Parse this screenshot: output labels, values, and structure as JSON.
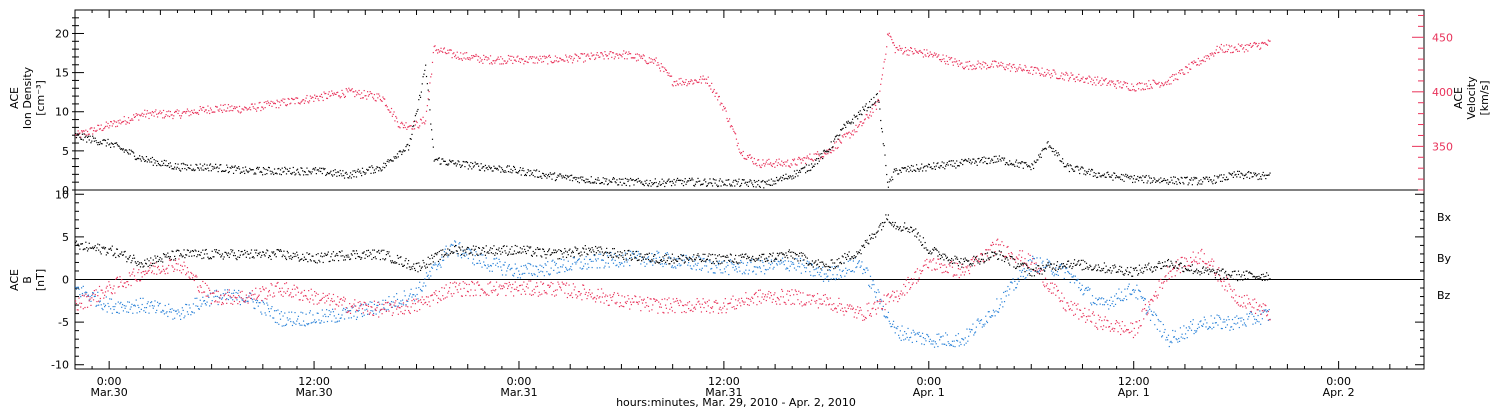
{
  "chart_data": [
    {
      "type": "scatter",
      "ylabel": [
        "ACE",
        "Ion Density",
        "[cm⁻³]"
      ],
      "ylabel_right": [
        "ACE",
        "Velocity",
        "[km/s]"
      ],
      "ylim": [
        0,
        23
      ],
      "ylim_right": [
        310,
        475
      ],
      "yticks": [
        0,
        5,
        10,
        15,
        20
      ],
      "yticks_right": [
        350,
        400,
        450
      ],
      "colors": {
        "density": "#000000",
        "velocity": "#e8325a"
      },
      "series": [
        {
          "name": "",
          "key": "density",
          "x": [
            -2,
            0,
            2,
            4,
            6,
            8,
            10,
            12,
            14,
            16,
            17,
            17.5,
            18,
            18.5,
            19,
            20,
            22,
            24,
            26,
            28,
            30,
            32,
            34,
            36,
            38,
            38.5,
            39,
            40,
            41,
            42,
            43,
            44,
            45,
            45.6,
            46,
            48,
            50,
            52,
            54,
            55,
            56,
            58,
            60,
            62,
            64,
            65,
            66,
            68
          ],
          "y": [
            7,
            6,
            4,
            3,
            3,
            2.5,
            2.5,
            2.5,
            2,
            3,
            5,
            5.5,
            10,
            16,
            4,
            3.5,
            3,
            2.5,
            1.8,
            1.4,
            1.1,
            1,
            1.1,
            1,
            0.9,
            0.8,
            1.2,
            2,
            3,
            5,
            8,
            10,
            12,
            0.5,
            2.5,
            3,
            3.5,
            4,
            3,
            6,
            3,
            2,
            1.5,
            1.3,
            1.2,
            1.5,
            2,
            1.8
          ]
        },
        {
          "name": "",
          "key": "velocity",
          "x": [
            -2,
            0,
            2,
            4,
            6,
            8,
            10,
            12,
            14,
            16,
            17,
            18,
            18.5,
            19,
            20,
            22,
            24,
            26,
            28,
            30,
            32,
            33,
            34,
            35,
            36,
            37,
            38,
            40,
            42,
            44,
            45,
            45.6,
            46,
            48,
            50,
            52,
            54,
            56,
            58,
            60,
            62,
            64,
            65,
            66,
            68
          ],
          "y": [
            360,
            370,
            380,
            380,
            385,
            385,
            390,
            395,
            400,
            395,
            370,
            370,
            375,
            440,
            435,
            430,
            430,
            430,
            432,
            435,
            428,
            410,
            410,
            412,
            385,
            345,
            335,
            335,
            345,
            370,
            390,
            455,
            440,
            435,
            425,
            425,
            420,
            415,
            410,
            405,
            410,
            430,
            440,
            440,
            445
          ]
        }
      ]
    },
    {
      "type": "scatter",
      "ylabel": [
        "ACE",
        "B",
        "[nT]"
      ],
      "ylim": [
        -10.5,
        10.5
      ],
      "yticks": [
        -10,
        -5,
        0,
        5,
        10
      ],
      "colors": {
        "bx": "#000000",
        "by": "#2a82d8",
        "bz": "#e8325a"
      },
      "series": [
        {
          "name": "Bx",
          "key": "bx",
          "x": [
            -2,
            0,
            2,
            4,
            6,
            8,
            10,
            12,
            14,
            16,
            18,
            20,
            22,
            24,
            26,
            28,
            30,
            32,
            34,
            36,
            38,
            40,
            42,
            44,
            45.6,
            46,
            47,
            48,
            50,
            52,
            54,
            56,
            58,
            60,
            62,
            64,
            66,
            68
          ],
          "y": [
            4,
            3.5,
            2,
            3,
            3,
            3,
            3,
            2.5,
            3,
            3,
            1.5,
            3.5,
            3.5,
            3.5,
            3,
            3.5,
            3,
            2.5,
            2.5,
            2.5,
            2.5,
            3,
            1.5,
            3.5,
            7.5,
            6.5,
            6,
            3.5,
            2,
            3,
            1,
            2,
            1.5,
            1,
            2,
            1,
            0.5,
            0.5
          ]
        },
        {
          "name": "By",
          "key": "by",
          "x": [
            -2,
            0,
            2,
            4,
            6,
            8,
            10,
            12,
            14,
            16,
            18,
            20,
            22,
            24,
            26,
            28,
            30,
            32,
            34,
            36,
            38,
            40,
            42,
            44,
            46,
            48,
            50,
            52,
            54,
            56,
            58,
            60,
            62,
            64,
            66,
            68
          ],
          "y": [
            -1,
            -3,
            -3,
            -4,
            -2,
            -2,
            -4.5,
            -4.5,
            -4,
            -3,
            -1.5,
            4,
            2,
            1,
            1.5,
            2,
            2.5,
            2.5,
            2,
            1.5,
            1.5,
            2,
            0.5,
            2,
            -6,
            -7,
            -7,
            -3,
            2,
            1,
            -3,
            -1,
            -7,
            -5,
            -5,
            -4
          ]
        },
        {
          "name": "Bz",
          "key": "bz",
          "x": [
            -2,
            0,
            2,
            4,
            6,
            8,
            10,
            12,
            14,
            16,
            18,
            20,
            22,
            24,
            26,
            28,
            30,
            32,
            34,
            36,
            38,
            40,
            42,
            44,
            46,
            48,
            50,
            52,
            54,
            56,
            58,
            60,
            62,
            64,
            66,
            68
          ],
          "y": [
            -3,
            -1,
            1,
            2,
            -2,
            -2,
            -1,
            -2,
            -3,
            -3.5,
            -3,
            -1,
            -1,
            -1,
            -1,
            -1.5,
            -2.5,
            -3,
            -3,
            -3,
            -2,
            -2,
            -2.5,
            -4,
            -2,
            2,
            1,
            4,
            2,
            -3,
            -5,
            -6,
            1,
            3,
            -2,
            -4
          ]
        }
      ]
    }
  ],
  "right_labels": {
    "bx": "Bₓ",
    "by": "Bᵧ",
    "bz": "B_z"
  },
  "right_labels_text": [
    "Bx",
    "By",
    "Bz"
  ],
  "x_axis": {
    "ticks": [
      {
        "h": 0,
        "time": "0:00",
        "date": "Mar.30"
      },
      {
        "h": 12,
        "time": "12:00",
        "date": "Mar.30"
      },
      {
        "h": 24,
        "time": "0:00",
        "date": "Mar.31"
      },
      {
        "h": 36,
        "time": "12:00",
        "date": "Mar.31"
      },
      {
        "h": 48,
        "time": "0:00",
        "date": "Apr. 1"
      },
      {
        "h": 60,
        "time": "12:00",
        "date": "Apr. 1"
      },
      {
        "h": 72,
        "time": "0:00",
        "date": "Apr. 2"
      }
    ],
    "range_hours": [
      -2,
      77
    ],
    "title": "hours:minutes, Mar. 29, 2010 - Apr.  2, 2010"
  }
}
